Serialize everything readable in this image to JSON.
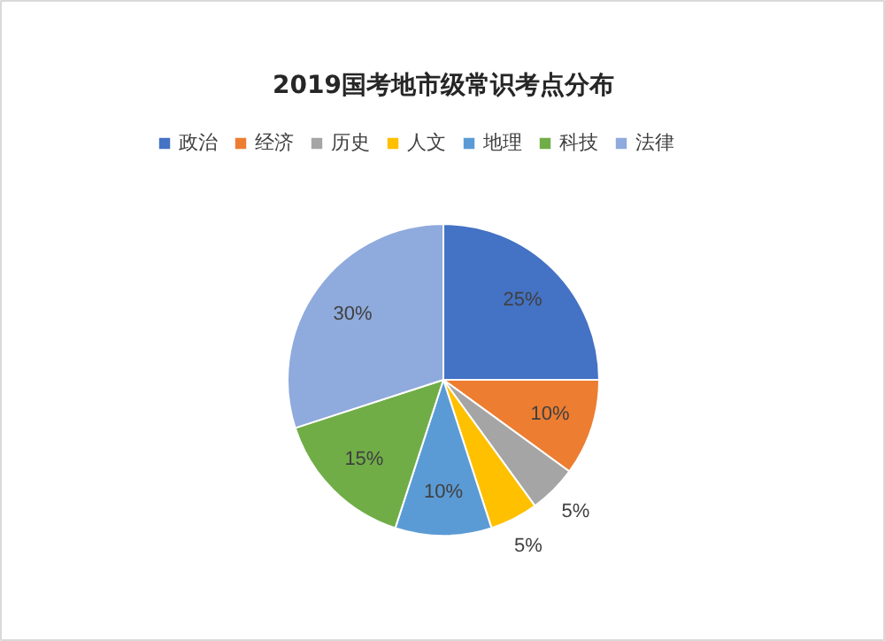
{
  "chart_data": {
    "type": "pie",
    "title": "2019国考地市级常识考点分布",
    "categories": [
      "政治",
      "经济",
      "历史",
      "人文",
      "地理",
      "科技",
      "法律"
    ],
    "values": [
      25,
      10,
      5,
      5,
      10,
      15,
      30
    ],
    "colors": [
      "#4472c4",
      "#ed7d31",
      "#a5a5a5",
      "#ffc000",
      "#5b9bd5",
      "#70ad47",
      "#8faadc"
    ],
    "value_labels": [
      "25%",
      "10%",
      "5%",
      "5%",
      "10%",
      "15%",
      "30%"
    ],
    "legend": "top"
  }
}
